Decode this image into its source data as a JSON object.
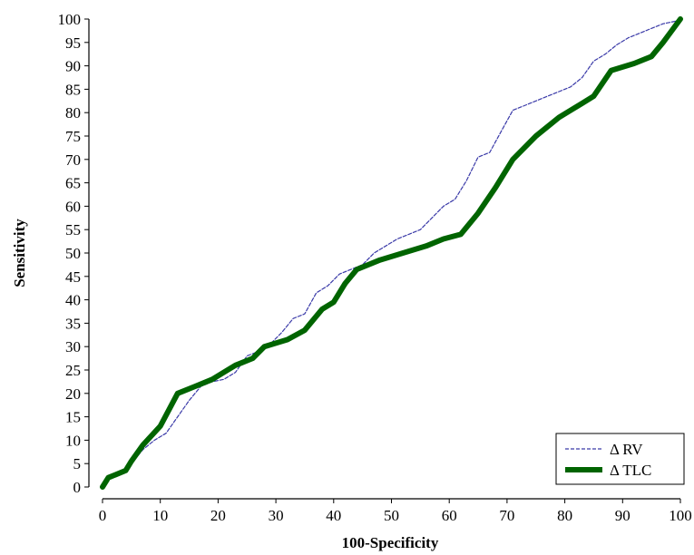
{
  "chart_data": {
    "type": "line",
    "xlabel": "100-Specificity",
    "ylabel": "Sensitivity",
    "xlim": [
      0,
      100
    ],
    "ylim": [
      0,
      100
    ],
    "x_ticks": [
      0,
      10,
      20,
      30,
      40,
      50,
      60,
      70,
      80,
      90,
      100
    ],
    "y_ticks": [
      0,
      5,
      10,
      15,
      20,
      25,
      30,
      35,
      40,
      45,
      50,
      55,
      60,
      65,
      70,
      75,
      80,
      85,
      90,
      95,
      100
    ],
    "grid": false,
    "legend_position": "bottom-right",
    "series": [
      {
        "name": "Δ RV",
        "color": "#3a3aa8",
        "style": "dashed",
        "x": [
          0,
          1,
          3,
          5,
          7,
          9,
          11,
          13,
          15,
          17,
          19,
          21,
          23,
          25,
          27,
          29,
          31,
          33,
          35,
          37,
          39,
          41,
          43,
          45,
          47,
          49,
          51,
          53,
          55,
          57,
          59,
          61,
          63,
          65,
          67,
          69,
          71,
          73,
          75,
          77,
          79,
          81,
          83,
          85,
          87,
          89,
          91,
          93,
          95,
          97,
          99,
          100
        ],
        "y": [
          0,
          2,
          3,
          5,
          8,
          10,
          11.5,
          15,
          18.5,
          21.5,
          22.5,
          23,
          24.5,
          28,
          29,
          30.5,
          33,
          36,
          37,
          41.5,
          43,
          45.5,
          46.5,
          47.5,
          50,
          51.5,
          53,
          54,
          55,
          57.5,
          60,
          61.5,
          65.5,
          70.5,
          71.5,
          76,
          80.5,
          81.5,
          82.5,
          83.5,
          84.5,
          85.5,
          87.5,
          91,
          92.5,
          94.5,
          96,
          97,
          98,
          99,
          99.5,
          100
        ]
      },
      {
        "name": "Δ TLC",
        "color": "#006400",
        "style": "solid",
        "x": [
          0,
          1,
          4,
          5,
          7,
          10,
          13,
          16,
          19,
          23,
          26,
          28,
          32,
          35,
          38,
          40,
          42,
          44,
          45,
          48,
          52,
          56,
          59,
          62,
          65,
          68,
          71,
          75,
          79,
          83,
          85,
          88,
          92,
          95,
          97,
          100
        ],
        "y": [
          0,
          2,
          3.5,
          5.5,
          9,
          13,
          20,
          21.5,
          23,
          26,
          27.5,
          30,
          31.5,
          33.5,
          38,
          39.5,
          43.5,
          46.5,
          47,
          48.5,
          50,
          51.5,
          53,
          54,
          58.5,
          64,
          70,
          75,
          79,
          82,
          83.5,
          89,
          90.5,
          92,
          95,
          100
        ]
      }
    ]
  }
}
